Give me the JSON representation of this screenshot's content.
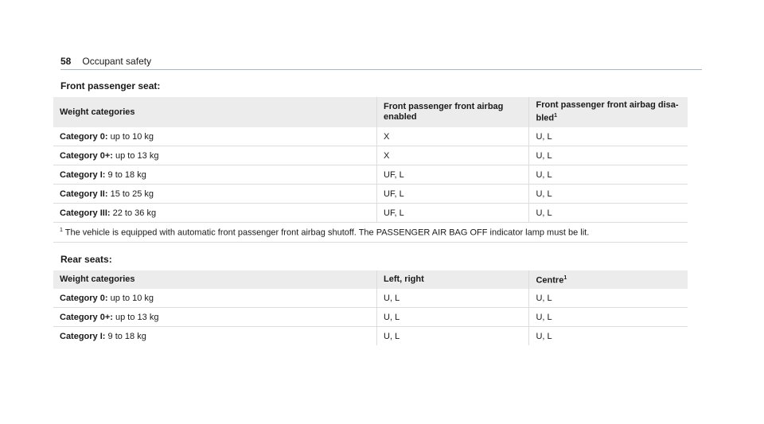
{
  "header": {
    "page_number": "58",
    "section": "Occupant safety"
  },
  "front": {
    "title": "Front passenger seat:",
    "columns": [
      "Weight categories",
      "Front passenger front airbag enabled",
      "Front passenger front airbag disa-\nbled",
      "1"
    ],
    "rows": [
      {
        "category": "Category 0:",
        "weight": "up to 10 kg",
        "enabled": "X",
        "disabled": "U, L"
      },
      {
        "category": "Category 0+:",
        "weight": "up to 13 kg",
        "enabled": "X",
        "disabled": "U, L"
      },
      {
        "category": "Category I:",
        "weight": "9 to 18 kg",
        "enabled": "UF, L",
        "disabled": "U, L"
      },
      {
        "category": "Category II:",
        "weight": "15 to 25 kg",
        "enabled": "UF, L",
        "disabled": "U, L"
      },
      {
        "category": "Category III:",
        "weight": "22 to 36 kg",
        "enabled": "UF, L",
        "disabled": "U, L"
      }
    ],
    "footnote_mark": "1",
    "footnote": "The vehicle is equipped with automatic front passenger front airbag shutoff. The PASSENGER AIR BAG OFF indicator lamp must be lit."
  },
  "rear": {
    "title": "Rear seats:",
    "columns": [
      "Weight categories",
      "Left, right",
      "Centre",
      "1"
    ],
    "rows": [
      {
        "category": "Category 0:",
        "weight": "up to 10 kg",
        "left_right": "U, L",
        "centre": "U, L"
      },
      {
        "category": "Category 0+:",
        "weight": "up to 13 kg",
        "left_right": "U, L",
        "centre": "U, L"
      },
      {
        "category": "Category I:",
        "weight": "9 to 18 kg",
        "left_right": "U, L",
        "centre": "U, L"
      }
    ]
  }
}
